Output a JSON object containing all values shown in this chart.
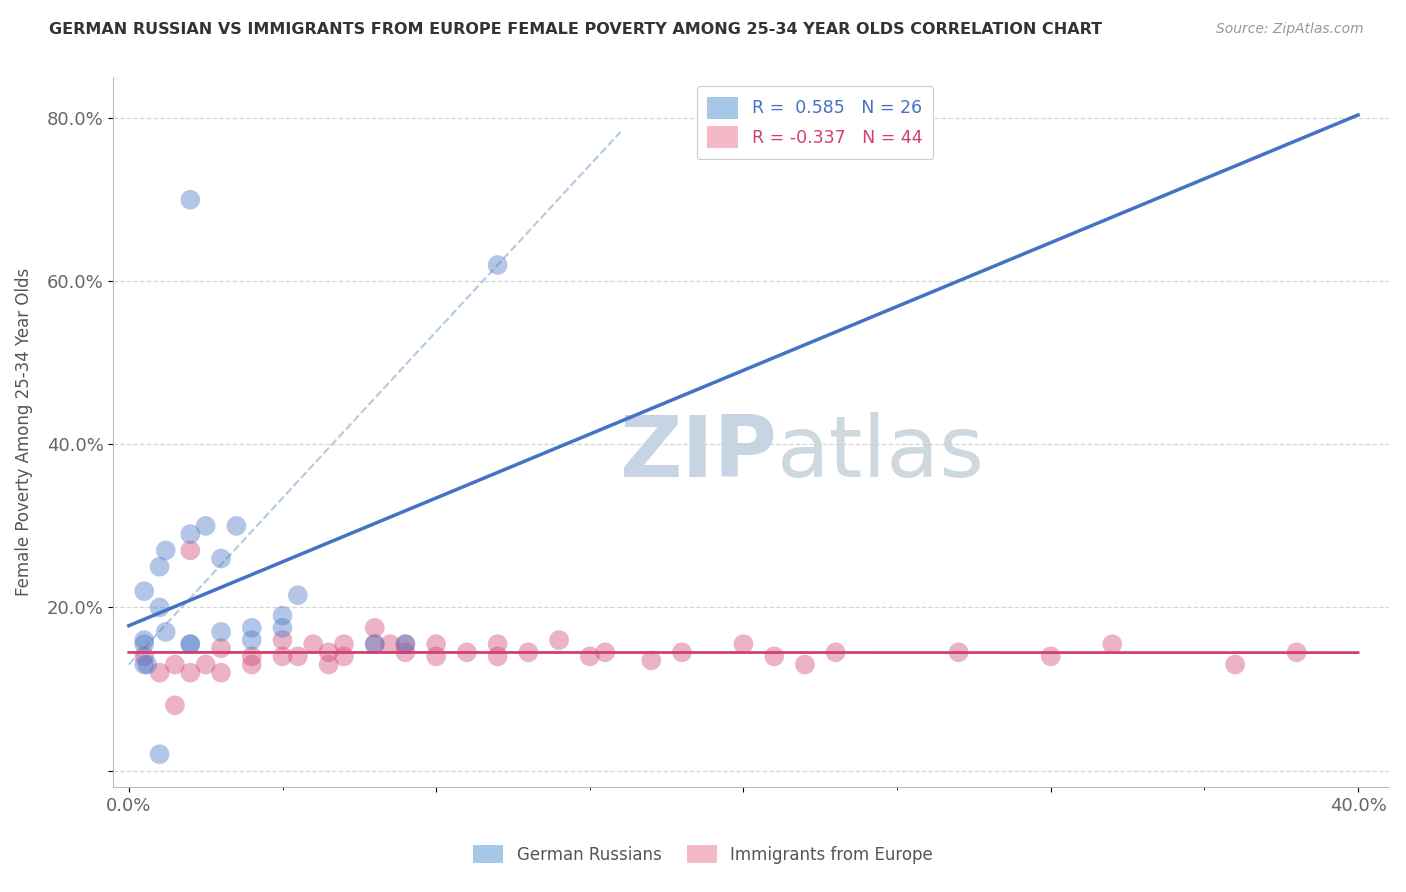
{
  "title": "GERMAN RUSSIAN VS IMMIGRANTS FROM EUROPE FEMALE POVERTY AMONG 25-34 YEAR OLDS CORRELATION CHART",
  "source": "Source: ZipAtlas.com",
  "ylabel": "Female Poverty Among 25-34 Year Olds",
  "xlim": [
    -0.5,
    41.0
  ],
  "ylim": [
    -2.0,
    85.0
  ],
  "xtick_vals": [
    0,
    10,
    20,
    30,
    40
  ],
  "xticklabels": [
    "0.0%",
    "",
    "",
    "",
    "40.0%"
  ],
  "ytick_vals": [
    0,
    20,
    40,
    60,
    80
  ],
  "yticklabels": [
    "",
    "20.0%",
    "40.0%",
    "60.0%",
    "80.0%"
  ],
  "legend_entries": [
    {
      "label": "R =  0.585   N = 26",
      "color": "#a8c8e8",
      "text_color": "#4472c4"
    },
    {
      "label": "R = -0.337   N = 44",
      "color": "#f4b8c8",
      "text_color": "#d04070"
    }
  ],
  "blue_scatter_x": [
    2.0,
    1.0,
    1.2,
    0.5,
    0.5,
    0.6,
    1.0,
    1.2,
    2.0,
    2.5,
    3.0,
    3.5,
    3.0,
    2.0,
    4.0,
    5.0,
    4.0,
    5.0,
    5.5,
    8.0,
    9.0,
    12.0,
    1.0,
    0.5,
    0.5,
    2.0
  ],
  "blue_scatter_y": [
    70.0,
    20.0,
    17.0,
    22.0,
    16.0,
    13.0,
    25.0,
    27.0,
    29.0,
    30.0,
    26.0,
    30.0,
    17.0,
    15.5,
    17.5,
    17.5,
    16.0,
    19.0,
    21.5,
    15.5,
    15.5,
    62.0,
    2.0,
    15.5,
    13.0,
    15.5
  ],
  "pink_scatter_x": [
    0.5,
    1.0,
    1.5,
    1.5,
    2.0,
    2.0,
    2.5,
    3.0,
    3.0,
    4.0,
    4.0,
    5.0,
    5.0,
    5.5,
    6.0,
    6.5,
    6.5,
    7.0,
    7.0,
    8.0,
    8.0,
    8.5,
    9.0,
    9.0,
    10.0,
    10.0,
    11.0,
    12.0,
    12.0,
    13.0,
    14.0,
    15.0,
    15.5,
    17.0,
    18.0,
    20.0,
    21.0,
    22.0,
    23.0,
    27.0,
    30.0,
    32.0,
    36.0,
    38.0
  ],
  "pink_scatter_y": [
    14.0,
    12.0,
    13.0,
    8.0,
    27.0,
    12.0,
    13.0,
    12.0,
    15.0,
    13.0,
    14.0,
    14.0,
    16.0,
    14.0,
    15.5,
    14.5,
    13.0,
    15.5,
    14.0,
    15.5,
    17.5,
    15.5,
    15.5,
    14.5,
    15.5,
    14.0,
    14.5,
    15.5,
    14.0,
    14.5,
    16.0,
    14.0,
    14.5,
    13.5,
    14.5,
    15.5,
    14.0,
    13.0,
    14.5,
    14.5,
    14.0,
    15.5,
    13.0,
    14.5
  ],
  "blue_line_color": "#4472c4",
  "pink_line_color": "#d04070",
  "dashed_line_color": "#a8c0d8",
  "watermark_zip": "ZIP",
  "watermark_atlas": "atlas",
  "watermark_color": "#c8d8e8",
  "background_color": "#ffffff",
  "grid_color": "#cccccc"
}
